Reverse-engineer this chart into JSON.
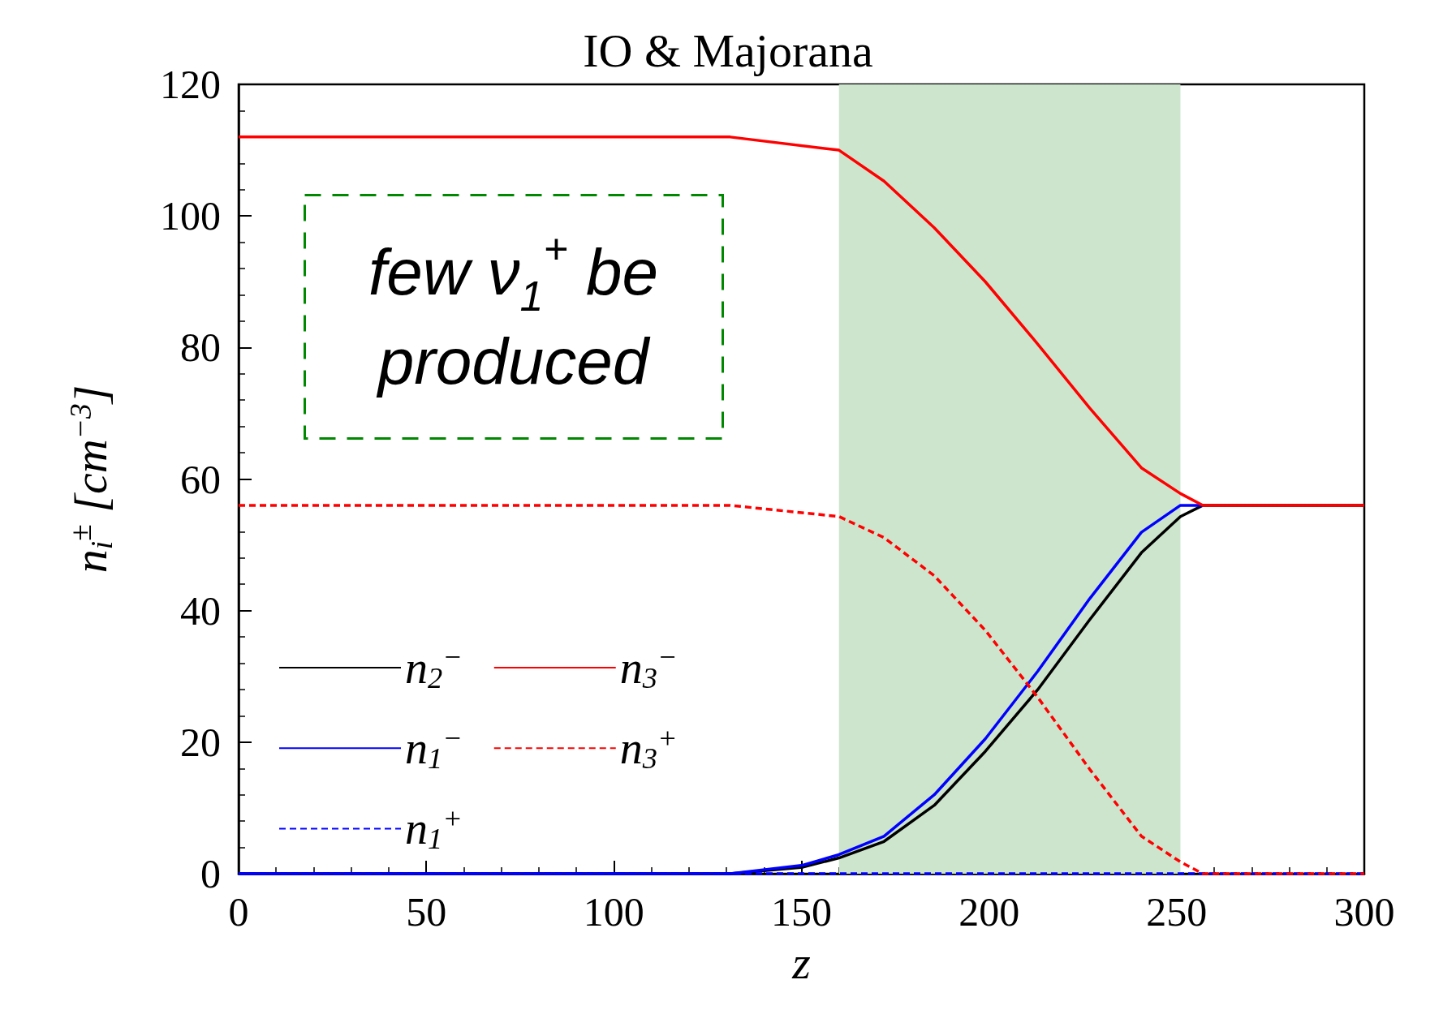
{
  "chart_data": {
    "type": "line",
    "title": "IO & Majorana",
    "xlabel": "z",
    "ylabel": "n$_{i}$$^{±}$ [cm$^{−3}$]",
    "annotations": [
      "few ν$_{1}$$^{+}$ be produced"
    ],
    "xlim": [
      0,
      300
    ],
    "xticks": [
      0,
      50,
      100,
      150,
      200,
      250,
      300
    ],
    "ylim": [
      0,
      120
    ],
    "yticks": [
      0,
      20,
      40,
      60,
      80,
      100,
      120
    ],
    "grid": false,
    "legend": "bottom left",
    "marker": "none",
    "bands": [
      {
        "axis": "x",
        "from": 160,
        "to": 251,
        "color": "#cde5cd"
      }
    ],
    "series": [
      {
        "name": "n$_{2}$$^{−}$",
        "color": "#000000",
        "line_style": "solid",
        "x": [
          0,
          131,
          150.4,
          160,
          172,
          185.4,
          199,
          213,
          226.8,
          240.6,
          251,
          257,
          300
        ],
        "values": [
          0,
          0,
          1.0,
          2.4,
          4.9,
          10.4,
          18.6,
          28,
          38.6,
          48.8,
          54.3,
          56,
          56
        ]
      },
      {
        "name": "n$_{1}$$^{−}$",
        "color": "#0000ff",
        "line_style": "solid",
        "x": [
          0,
          131,
          150.4,
          160,
          172,
          185.4,
          199,
          213,
          226.8,
          240.6,
          251,
          257
        ],
        "values": [
          0,
          0,
          1.3,
          2.9,
          5.7,
          12,
          20.5,
          30.8,
          41.8,
          51.9,
          56,
          56
        ]
      },
      {
        "name": "n$_{1}$$^{+}$",
        "color": "#0000ff",
        "line_style": "dashed",
        "x": [
          0,
          300
        ],
        "values": [
          0,
          0
        ]
      },
      {
        "name": "n$_{3}$$^{−}$",
        "color": "#ff0000",
        "line_style": "solid",
        "x": [
          0,
          131,
          160,
          172,
          185.4,
          199,
          213,
          226.8,
          240.6,
          251,
          257,
          300
        ],
        "values": [
          112,
          112,
          110,
          105.3,
          98.2,
          90,
          80.5,
          70.8,
          61.7,
          57.8,
          56,
          56
        ]
      },
      {
        "name": "n$_{3}$$^{+}$",
        "color": "#ff0000",
        "line_style": "dashed",
        "x": [
          0,
          131,
          160,
          172,
          185.4,
          199,
          213,
          226.8,
          240.6,
          251,
          257,
          300
        ],
        "values": [
          56,
          56,
          54.3,
          51.1,
          45.3,
          37,
          26.8,
          15.9,
          5.7,
          1.8,
          0,
          0
        ]
      }
    ]
  }
}
